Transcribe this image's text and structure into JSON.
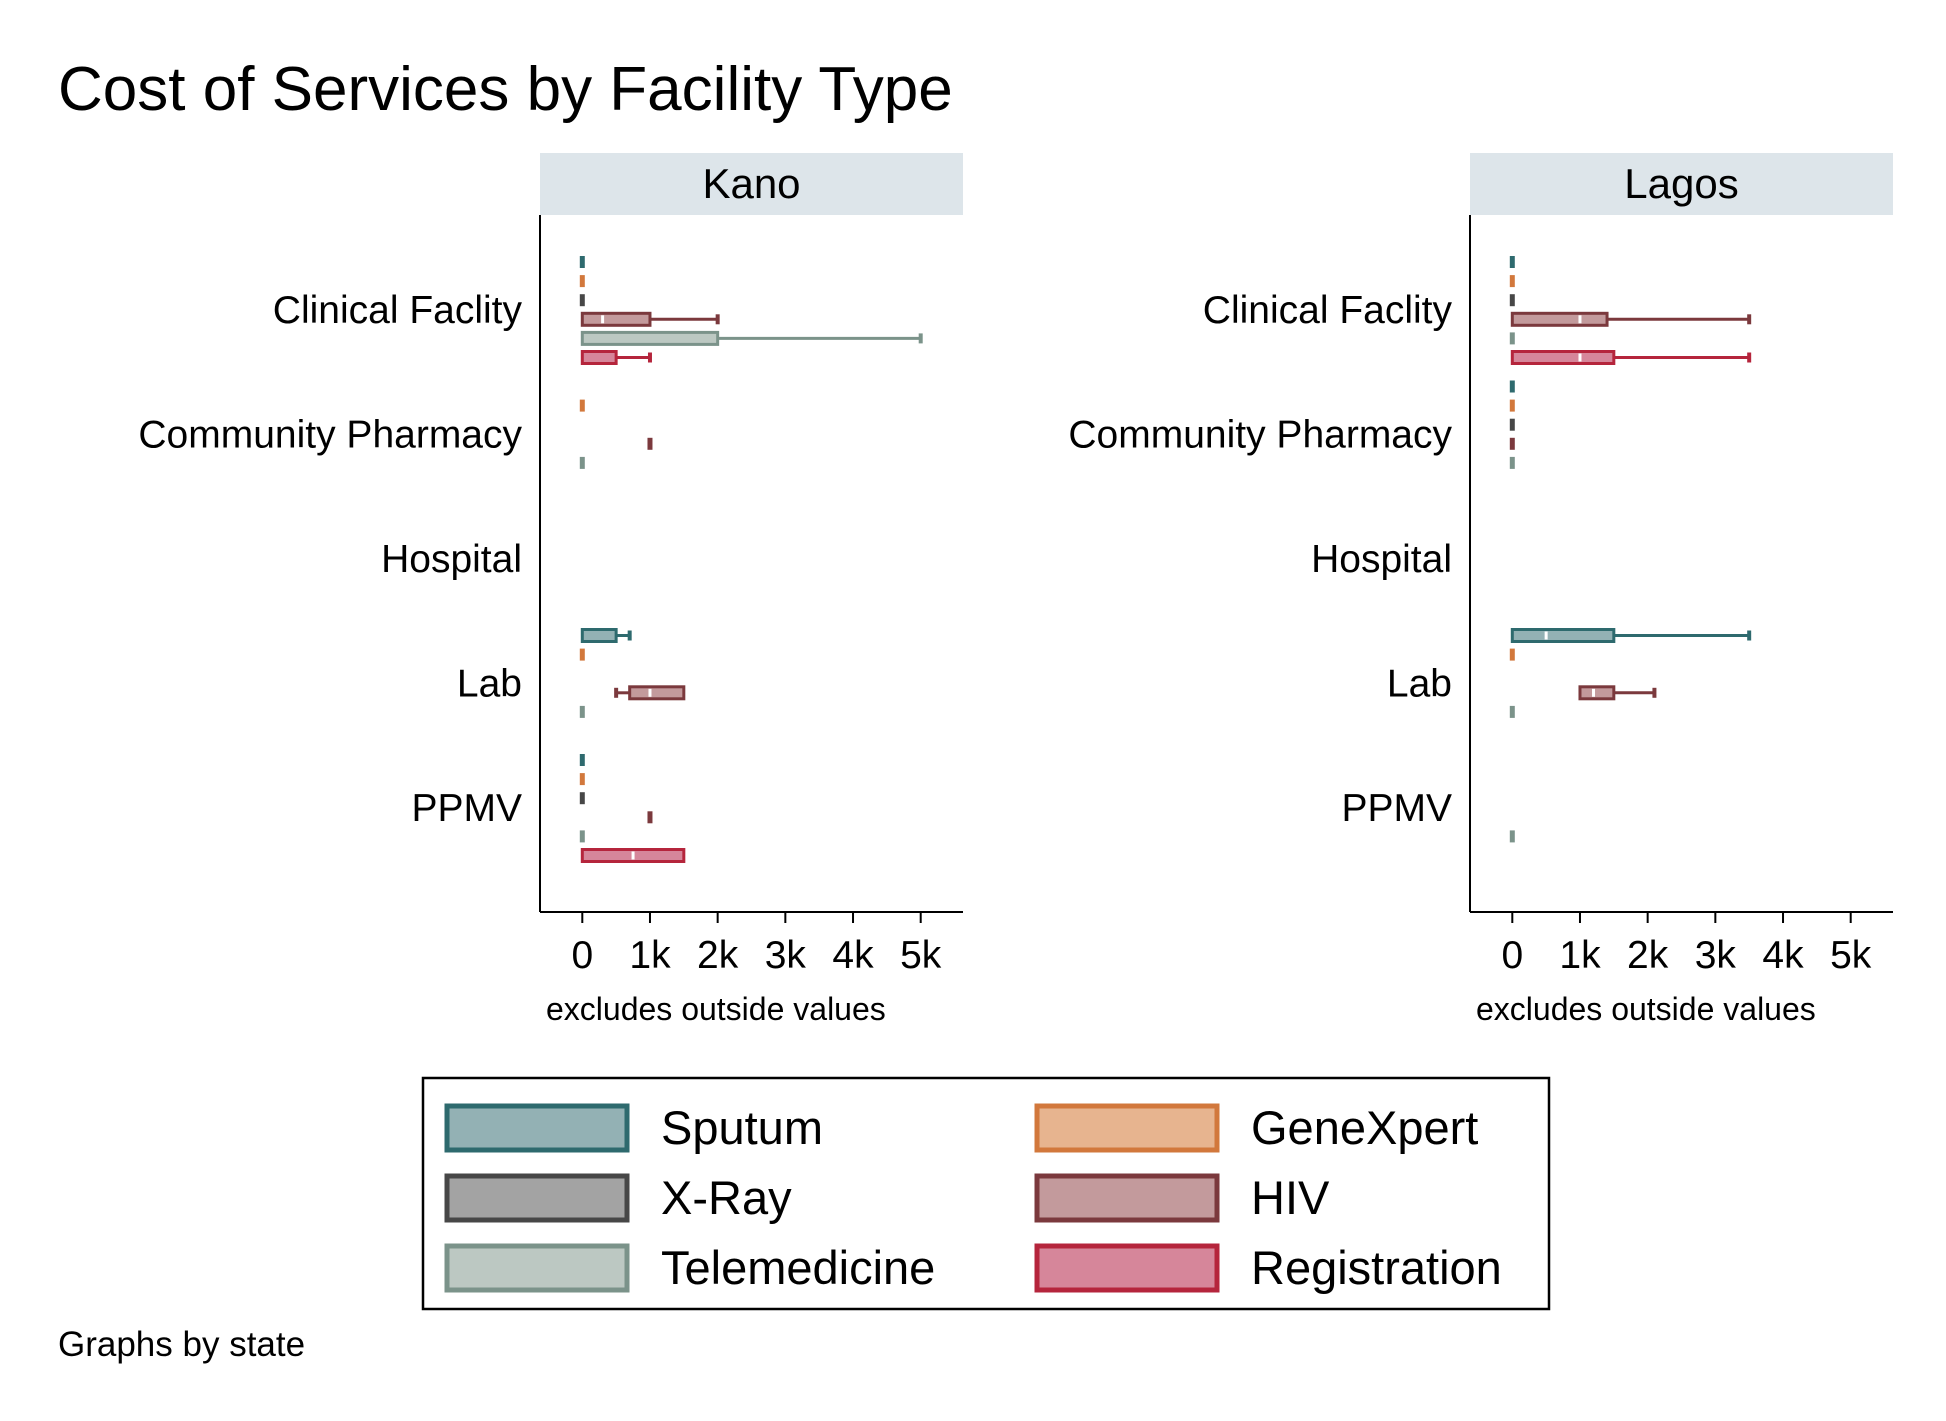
{
  "chart_data": {
    "type": "box",
    "title": "Cost of Services by Facility Type",
    "note": "Graphs by state",
    "axis_note": "excludes outside values",
    "orientation": "horizontal",
    "xlim": [
      -625,
      5625
    ],
    "x_ticks": [
      {
        "value": 0,
        "label": "0"
      },
      {
        "value": 1000,
        "label": "1k"
      },
      {
        "value": 2000,
        "label": "2k"
      },
      {
        "value": 3000,
        "label": "3k"
      },
      {
        "value": 4000,
        "label": "4k"
      },
      {
        "value": 5000,
        "label": "5k"
      }
    ],
    "categories": [
      "Clinical Faclity",
      "Community Pharmacy",
      "Hospital",
      "Lab",
      "PPMV"
    ],
    "series": [
      {
        "name": "Sputum",
        "stroke": "#2e6a6e",
        "fill": "#93b1b4"
      },
      {
        "name": "GeneXpert",
        "stroke": "#d2783c",
        "fill": "#e7b48f"
      },
      {
        "name": "X-Ray",
        "stroke": "#474747",
        "fill": "#a3a3a3"
      },
      {
        "name": "HIV",
        "stroke": "#7b393d",
        "fill": "#c39a9c"
      },
      {
        "name": "Telemedicine",
        "stroke": "#7b938a",
        "fill": "#bcc8c2"
      },
      {
        "name": "Registration",
        "stroke": "#b5253c",
        "fill": "#d6869a"
      }
    ],
    "legend": {
      "placement": "bottom",
      "columns": 2,
      "order": [
        "Sputum",
        "GeneXpert",
        "X-Ray",
        "HIV",
        "Telemedicine",
        "Registration"
      ]
    },
    "panels": [
      {
        "name": "Kano",
        "boxes": [
          {
            "category": "Clinical Faclity",
            "series": "Sputum",
            "min": 0,
            "q1": 0,
            "median": 0,
            "q3": 0,
            "max": 0
          },
          {
            "category": "Clinical Faclity",
            "series": "GeneXpert",
            "min": 0,
            "q1": 0,
            "median": 0,
            "q3": 0,
            "max": 0
          },
          {
            "category": "Clinical Faclity",
            "series": "X-Ray",
            "min": 0,
            "q1": 0,
            "median": 0,
            "q3": 0,
            "max": 0
          },
          {
            "category": "Clinical Faclity",
            "series": "HIV",
            "min": 0,
            "q1": 0,
            "median": 300,
            "q3": 1000,
            "max": 2000
          },
          {
            "category": "Clinical Faclity",
            "series": "Telemedicine",
            "min": 0,
            "q1": 0,
            "median": 0,
            "q3": 2000,
            "max": 5000
          },
          {
            "category": "Clinical Faclity",
            "series": "Registration",
            "min": 0,
            "q1": 0,
            "median": 0,
            "q3": 500,
            "max": 1000
          },
          {
            "category": "Community Pharmacy",
            "series": "GeneXpert",
            "min": 0,
            "q1": 0,
            "median": 0,
            "q3": 0,
            "max": 0
          },
          {
            "category": "Community Pharmacy",
            "series": "HIV",
            "min": 1000,
            "q1": 1000,
            "median": 1000,
            "q3": 1000,
            "max": 1000
          },
          {
            "category": "Community Pharmacy",
            "series": "Telemedicine",
            "min": 0,
            "q1": 0,
            "median": 0,
            "q3": 0,
            "max": 0
          },
          {
            "category": "Lab",
            "series": "Sputum",
            "min": 0,
            "q1": 0,
            "median": 500,
            "q3": 500,
            "max": 700
          },
          {
            "category": "Lab",
            "series": "GeneXpert",
            "min": 0,
            "q1": 0,
            "median": 0,
            "q3": 0,
            "max": 0
          },
          {
            "category": "Lab",
            "series": "HIV",
            "min": 500,
            "q1": 700,
            "median": 1000,
            "q3": 1500,
            "max": 1500
          },
          {
            "category": "Lab",
            "series": "Telemedicine",
            "min": 0,
            "q1": 0,
            "median": 0,
            "q3": 0,
            "max": 0
          },
          {
            "category": "PPMV",
            "series": "Sputum",
            "min": 0,
            "q1": 0,
            "median": 0,
            "q3": 0,
            "max": 0
          },
          {
            "category": "PPMV",
            "series": "GeneXpert",
            "min": 0,
            "q1": 0,
            "median": 0,
            "q3": 0,
            "max": 0
          },
          {
            "category": "PPMV",
            "series": "X-Ray",
            "min": 0,
            "q1": 0,
            "median": 0,
            "q3": 0,
            "max": 0
          },
          {
            "category": "PPMV",
            "series": "HIV",
            "min": 1000,
            "q1": 1000,
            "median": 1000,
            "q3": 1000,
            "max": 1000
          },
          {
            "category": "PPMV",
            "series": "Telemedicine",
            "min": 0,
            "q1": 0,
            "median": 0,
            "q3": 0,
            "max": 0
          },
          {
            "category": "PPMV",
            "series": "Registration",
            "min": 0,
            "q1": 0,
            "median": 750,
            "q3": 1500,
            "max": 1500
          }
        ]
      },
      {
        "name": "Lagos",
        "boxes": [
          {
            "category": "Clinical Faclity",
            "series": "Sputum",
            "min": 0,
            "q1": 0,
            "median": 0,
            "q3": 0,
            "max": 0
          },
          {
            "category": "Clinical Faclity",
            "series": "GeneXpert",
            "min": 0,
            "q1": 0,
            "median": 0,
            "q3": 0,
            "max": 0
          },
          {
            "category": "Clinical Faclity",
            "series": "X-Ray",
            "min": 0,
            "q1": 0,
            "median": 0,
            "q3": 0,
            "max": 0
          },
          {
            "category": "Clinical Faclity",
            "series": "HIV",
            "min": 0,
            "q1": 0,
            "median": 1000,
            "q3": 1400,
            "max": 3500
          },
          {
            "category": "Clinical Faclity",
            "series": "Telemedicine",
            "min": 0,
            "q1": 0,
            "median": 0,
            "q3": 0,
            "max": 0
          },
          {
            "category": "Clinical Faclity",
            "series": "Registration",
            "min": 0,
            "q1": 0,
            "median": 1000,
            "q3": 1500,
            "max": 3500
          },
          {
            "category": "Community Pharmacy",
            "series": "Sputum",
            "min": 0,
            "q1": 0,
            "median": 0,
            "q3": 0,
            "max": 0
          },
          {
            "category": "Community Pharmacy",
            "series": "GeneXpert",
            "min": 0,
            "q1": 0,
            "median": 0,
            "q3": 0,
            "max": 0
          },
          {
            "category": "Community Pharmacy",
            "series": "X-Ray",
            "min": 0,
            "q1": 0,
            "median": 0,
            "q3": 0,
            "max": 0
          },
          {
            "category": "Community Pharmacy",
            "series": "HIV",
            "min": 0,
            "q1": 0,
            "median": 0,
            "q3": 0,
            "max": 0
          },
          {
            "category": "Community Pharmacy",
            "series": "Telemedicine",
            "min": 0,
            "q1": 0,
            "median": 0,
            "q3": 0,
            "max": 0
          },
          {
            "category": "Lab",
            "series": "Sputum",
            "min": 0,
            "q1": 0,
            "median": 500,
            "q3": 1500,
            "max": 3500
          },
          {
            "category": "Lab",
            "series": "GeneXpert",
            "min": 0,
            "q1": 0,
            "median": 0,
            "q3": 0,
            "max": 0
          },
          {
            "category": "Lab",
            "series": "HIV",
            "min": 1000,
            "q1": 1000,
            "median": 1200,
            "q3": 1500,
            "max": 2100
          },
          {
            "category": "Lab",
            "series": "Telemedicine",
            "min": 0,
            "q1": 0,
            "median": 0,
            "q3": 0,
            "max": 0
          },
          {
            "category": "PPMV",
            "series": "Telemedicine",
            "min": 0,
            "q1": 0,
            "median": 0,
            "q3": 0,
            "max": 0
          }
        ]
      }
    ]
  }
}
